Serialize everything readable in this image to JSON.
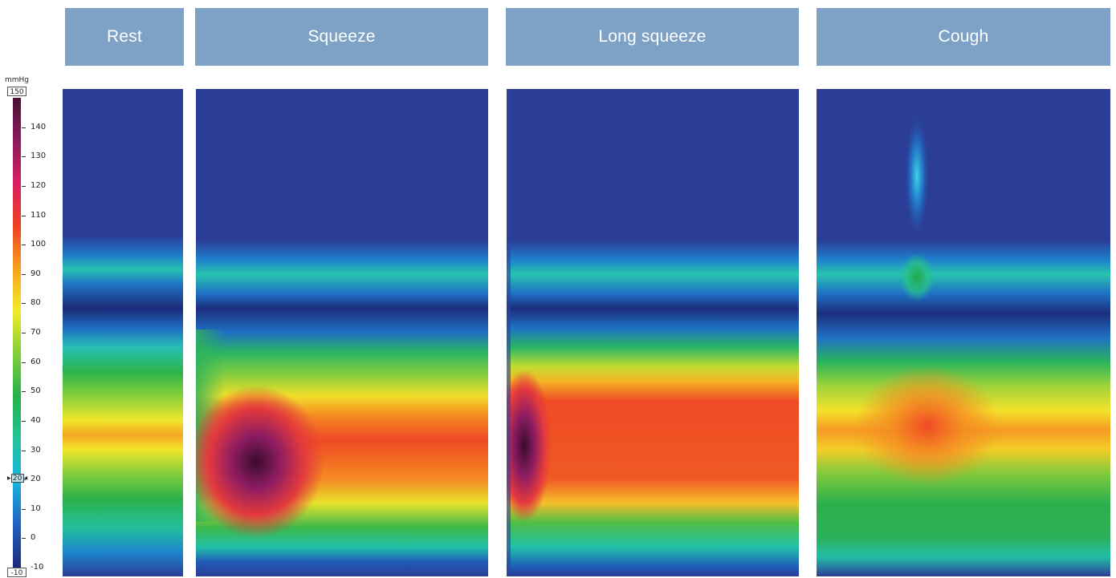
{
  "chart_data": {
    "type": "heatmap",
    "title": "",
    "xlabel": "",
    "ylabel": "",
    "colorbar": {
      "unit": "mmHg",
      "max_label": "150",
      "min_label": "-10",
      "range": [
        -10,
        150
      ],
      "ticks": [
        140,
        130,
        120,
        110,
        100,
        90,
        80,
        70,
        60,
        50,
        40,
        30,
        20,
        10,
        0,
        -10
      ],
      "marker_value": "20",
      "colors": [
        "#1f2a7a",
        "#1f5fc0",
        "#18b4e0",
        "#23c39a",
        "#25b04a",
        "#7fcf3a",
        "#f2ec28",
        "#f7a21e",
        "#ef3f23",
        "#d81e63",
        "#8a1c5a",
        "#4a1035"
      ]
    },
    "panels": [
      {
        "name": "Rest"
      },
      {
        "name": "Squeeze"
      },
      {
        "name": "Long squeeze"
      },
      {
        "name": "Cough"
      }
    ]
  }
}
